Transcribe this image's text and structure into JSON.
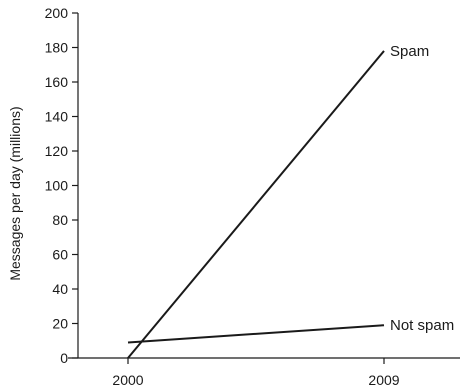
{
  "chart_data": {
    "type": "line",
    "title": "",
    "xlabel": "",
    "ylabel": "Messages per day (millions)",
    "x_ticks": [
      "2000",
      "2009"
    ],
    "y_ticks": [
      "0",
      "20",
      "40",
      "60",
      "80",
      "100",
      "120",
      "140",
      "160",
      "180",
      "200"
    ],
    "ylim": [
      0,
      200
    ],
    "xlim": [
      2000,
      2009
    ],
    "grid": false,
    "legend": "inline",
    "series": [
      {
        "name": "Spam",
        "x": [
          2000,
          2009
        ],
        "values": [
          0,
          178
        ]
      },
      {
        "name": "Not spam",
        "x": [
          2000,
          2009
        ],
        "values": [
          9,
          19
        ]
      }
    ]
  }
}
